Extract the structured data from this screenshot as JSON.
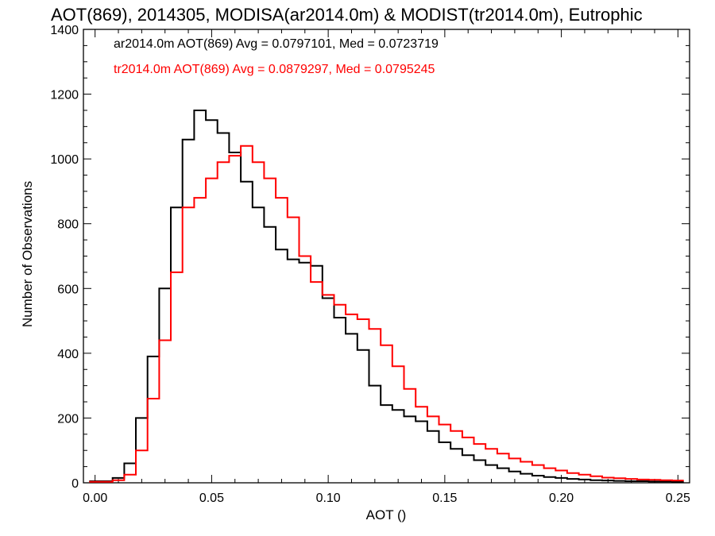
{
  "chart_data": {
    "type": "line",
    "title": "AOT(869), 2014305, MODISA(ar2014.0m) & MODIST(tr2014.0m), Eutrophic",
    "xlabel": "AOT ()",
    "ylabel": "Number of Observations",
    "xlim": [
      -0.005,
      0.255
    ],
    "ylim": [
      0,
      1400
    ],
    "xticks": [
      "0.00",
      "0.05",
      "0.10",
      "0.15",
      "0.20",
      "0.25"
    ],
    "xtick_values": [
      0.0,
      0.05,
      0.1,
      0.15,
      0.2,
      0.25
    ],
    "yticks": [
      "0",
      "200",
      "400",
      "600",
      "800",
      "1000",
      "1200",
      "1400"
    ],
    "ytick_values": [
      0,
      200,
      400,
      600,
      800,
      1000,
      1200,
      1400
    ],
    "grid": false,
    "legend_position": "top-left",
    "annotations": [
      {
        "text": "ar2014.0m AOT(869) Avg = 0.0797101, Med = 0.0723719",
        "color": "#000000"
      },
      {
        "text": "tr2014.0m AOT(869) Avg = 0.0879297, Med = 0.0795245",
        "color": "#ff0000"
      }
    ],
    "x": [
      0.0,
      0.005,
      0.01,
      0.015,
      0.02,
      0.025,
      0.03,
      0.035,
      0.04,
      0.045,
      0.05,
      0.055,
      0.06,
      0.065,
      0.07,
      0.075,
      0.08,
      0.085,
      0.09,
      0.095,
      0.1,
      0.105,
      0.11,
      0.115,
      0.12,
      0.125,
      0.13,
      0.135,
      0.14,
      0.145,
      0.15,
      0.155,
      0.16,
      0.165,
      0.17,
      0.175,
      0.18,
      0.185,
      0.19,
      0.195,
      0.2,
      0.205,
      0.21,
      0.215,
      0.22,
      0.225,
      0.23,
      0.235,
      0.24,
      0.245,
      0.25
    ],
    "series": [
      {
        "color": "#000000",
        "values": [
          5,
          5,
          15,
          60,
          200,
          390,
          600,
          850,
          1060,
          1150,
          1120,
          1080,
          1020,
          930,
          850,
          790,
          720,
          690,
          680,
          670,
          570,
          510,
          460,
          410,
          300,
          240,
          225,
          205,
          190,
          160,
          125,
          105,
          85,
          70,
          55,
          45,
          35,
          28,
          22,
          18,
          15,
          12,
          10,
          8,
          7,
          6,
          5,
          5,
          4,
          4,
          3
        ]
      },
      {
        "color": "#ff0000",
        "values": [
          3,
          3,
          8,
          25,
          100,
          260,
          440,
          650,
          850,
          880,
          940,
          990,
          1010,
          1040,
          990,
          940,
          880,
          820,
          700,
          620,
          580,
          550,
          520,
          505,
          475,
          425,
          360,
          290,
          235,
          205,
          180,
          160,
          140,
          120,
          105,
          90,
          75,
          65,
          55,
          45,
          38,
          30,
          25,
          20,
          16,
          14,
          12,
          10,
          9,
          8,
          7
        ]
      }
    ]
  }
}
